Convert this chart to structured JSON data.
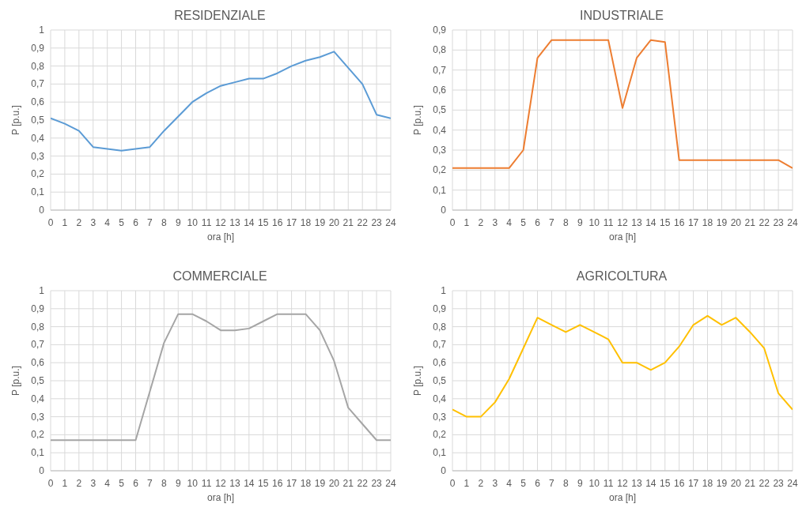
{
  "chart_data": [
    {
      "type": "line",
      "title": "RESIDENZIALE",
      "xlabel": "ora [h]",
      "ylabel": "P [p.u.]",
      "x": [
        0,
        1,
        2,
        3,
        4,
        5,
        6,
        7,
        8,
        9,
        10,
        11,
        12,
        13,
        14,
        15,
        16,
        17,
        18,
        19,
        20,
        21,
        22,
        23,
        24
      ],
      "series": [
        {
          "color": "#5b9bd5",
          "values": [
            0.51,
            0.48,
            0.44,
            0.35,
            0.34,
            0.33,
            0.34,
            0.35,
            0.44,
            0.52,
            0.6,
            0.65,
            0.69,
            0.71,
            0.73,
            0.73,
            0.76,
            0.8,
            0.83,
            0.85,
            0.88,
            0.79,
            0.7,
            0.53,
            0.51
          ]
        }
      ],
      "xlim": [
        0,
        24
      ],
      "xticks": [
        0,
        1,
        2,
        3,
        4,
        5,
        6,
        7,
        8,
        9,
        10,
        11,
        12,
        13,
        14,
        15,
        16,
        17,
        18,
        19,
        20,
        21,
        22,
        23,
        24
      ],
      "ylim": [
        0,
        1
      ],
      "yticks": [
        {
          "value": 0,
          "label": "0"
        },
        {
          "value": 0.1,
          "label": "0,1"
        },
        {
          "value": 0.2,
          "label": "0,2"
        },
        {
          "value": 0.3,
          "label": "0,3"
        },
        {
          "value": 0.4,
          "label": "0,4"
        },
        {
          "value": 0.5,
          "label": "0,5"
        },
        {
          "value": 0.6,
          "label": "0,6"
        },
        {
          "value": 0.7,
          "label": "0,7"
        },
        {
          "value": 0.8,
          "label": "0,8"
        },
        {
          "value": 0.9,
          "label": "0,9"
        },
        {
          "value": 1,
          "label": "1"
        }
      ],
      "grid": true
    },
    {
      "type": "line",
      "title": "INDUSTRIALE",
      "xlabel": "ora [h]",
      "ylabel": "P [p.u.]",
      "x": [
        0,
        1,
        2,
        3,
        4,
        5,
        6,
        7,
        8,
        9,
        10,
        11,
        12,
        13,
        14,
        15,
        16,
        17,
        18,
        19,
        20,
        21,
        22,
        23,
        24
      ],
      "series": [
        {
          "color": "#ed7d31",
          "values": [
            0.21,
            0.21,
            0.21,
            0.21,
            0.21,
            0.3,
            0.76,
            0.85,
            0.85,
            0.85,
            0.85,
            0.85,
            0.51,
            0.76,
            0.85,
            0.84,
            0.25,
            0.25,
            0.25,
            0.25,
            0.25,
            0.25,
            0.25,
            0.25,
            0.21
          ]
        }
      ],
      "xlim": [
        0,
        24
      ],
      "xticks": [
        0,
        1,
        2,
        3,
        4,
        5,
        6,
        7,
        8,
        9,
        10,
        11,
        12,
        13,
        14,
        15,
        16,
        17,
        18,
        19,
        20,
        21,
        22,
        23,
        24
      ],
      "ylim": [
        0,
        0.9
      ],
      "yticks": [
        {
          "value": 0,
          "label": "0"
        },
        {
          "value": 0.1,
          "label": "0,1"
        },
        {
          "value": 0.2,
          "label": "0,2"
        },
        {
          "value": 0.3,
          "label": "0,3"
        },
        {
          "value": 0.4,
          "label": "0,4"
        },
        {
          "value": 0.5,
          "label": "0,5"
        },
        {
          "value": 0.6,
          "label": "0,6"
        },
        {
          "value": 0.7,
          "label": "0,7"
        },
        {
          "value": 0.8,
          "label": "0,8"
        },
        {
          "value": 0.9,
          "label": "0,9"
        }
      ],
      "grid": true
    },
    {
      "type": "line",
      "title": "COMMERCIALE",
      "xlabel": "ora [h]",
      "ylabel": "P [p.u.]",
      "x": [
        0,
        1,
        2,
        3,
        4,
        5,
        6,
        7,
        8,
        9,
        10,
        11,
        12,
        13,
        14,
        15,
        16,
        17,
        18,
        19,
        20,
        21,
        22,
        23,
        24
      ],
      "series": [
        {
          "color": "#a5a5a5",
          "values": [
            0.17,
            0.17,
            0.17,
            0.17,
            0.17,
            0.17,
            0.17,
            0.44,
            0.71,
            0.87,
            0.87,
            0.83,
            0.78,
            0.78,
            0.79,
            0.83,
            0.87,
            0.87,
            0.87,
            0.78,
            0.61,
            0.35,
            0.26,
            0.17,
            0.17
          ]
        }
      ],
      "xlim": [
        0,
        24
      ],
      "xticks": [
        0,
        1,
        2,
        3,
        4,
        5,
        6,
        7,
        8,
        9,
        10,
        11,
        12,
        13,
        14,
        15,
        16,
        17,
        18,
        19,
        20,
        21,
        22,
        23,
        24
      ],
      "ylim": [
        0,
        1
      ],
      "yticks": [
        {
          "value": 0,
          "label": "0"
        },
        {
          "value": 0.1,
          "label": "0,1"
        },
        {
          "value": 0.2,
          "label": "0,2"
        },
        {
          "value": 0.3,
          "label": "0,3"
        },
        {
          "value": 0.4,
          "label": "0,4"
        },
        {
          "value": 0.5,
          "label": "0,5"
        },
        {
          "value": 0.6,
          "label": "0,6"
        },
        {
          "value": 0.7,
          "label": "0,7"
        },
        {
          "value": 0.8,
          "label": "0,8"
        },
        {
          "value": 0.9,
          "label": "0,9"
        },
        {
          "value": 1,
          "label": "1"
        }
      ],
      "grid": true
    },
    {
      "type": "line",
      "title": "AGRICOLTURA",
      "xlabel": "ora [h]",
      "ylabel": "P [p.u.]",
      "x": [
        0,
        1,
        2,
        3,
        4,
        5,
        6,
        7,
        8,
        9,
        10,
        11,
        12,
        13,
        14,
        15,
        16,
        17,
        18,
        19,
        20,
        21,
        22,
        23,
        24
      ],
      "series": [
        {
          "color": "#ffc000",
          "values": [
            0.34,
            0.3,
            0.3,
            0.38,
            0.51,
            0.68,
            0.85,
            0.81,
            0.77,
            0.81,
            0.77,
            0.73,
            0.6,
            0.6,
            0.56,
            0.6,
            0.69,
            0.81,
            0.86,
            0.81,
            0.85,
            0.77,
            0.68,
            0.43,
            0.34
          ]
        }
      ],
      "xlim": [
        0,
        24
      ],
      "xticks": [
        0,
        1,
        2,
        3,
        4,
        5,
        6,
        7,
        8,
        9,
        10,
        11,
        12,
        13,
        14,
        15,
        16,
        17,
        18,
        19,
        20,
        21,
        22,
        23,
        24
      ],
      "ylim": [
        0,
        1
      ],
      "yticks": [
        {
          "value": 0,
          "label": "0"
        },
        {
          "value": 0.1,
          "label": "0,1"
        },
        {
          "value": 0.2,
          "label": "0,2"
        },
        {
          "value": 0.3,
          "label": "0,3"
        },
        {
          "value": 0.4,
          "label": "0,4"
        },
        {
          "value": 0.5,
          "label": "0,5"
        },
        {
          "value": 0.6,
          "label": "0,6"
        },
        {
          "value": 0.7,
          "label": "0,7"
        },
        {
          "value": 0.8,
          "label": "0,8"
        },
        {
          "value": 0.9,
          "label": "0,9"
        },
        {
          "value": 1,
          "label": "1"
        }
      ],
      "grid": true
    }
  ]
}
